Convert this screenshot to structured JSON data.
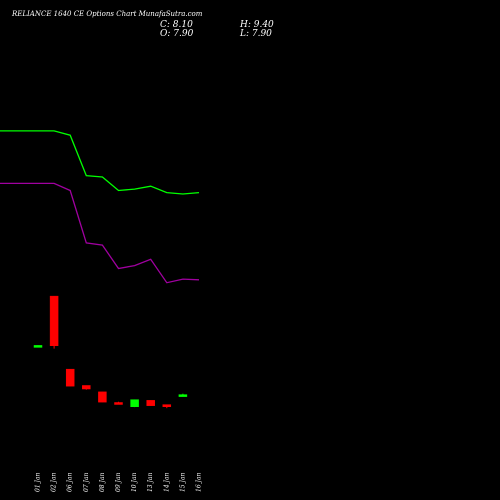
{
  "header": {
    "title": "RELIANCE 1640 CE Options Chart MunafaSutra.com",
    "close": "C: 8.10",
    "open": "O: 7.90",
    "high": "H: 9.40",
    "low": "L: 7.90"
  },
  "colors": {
    "background": "#000000",
    "bull": "#00ff00",
    "bear": "#ff0000",
    "upper_band": "#00ff00",
    "lower_band": "#a000a0"
  },
  "chart_data": {
    "type": "candlestick",
    "x_ticks": [
      "01 Jan",
      "02 Jan",
      "06 Jan",
      "07 Jan",
      "08 Jan",
      "09 Jan",
      "10 Jan",
      "13 Jan",
      "14 Jan",
      "15 Jan",
      "16 Jan"
    ],
    "candles": [
      {
        "date": "01 Jan",
        "open": 76.5,
        "high": 77.5,
        "low": 76.5,
        "close": 77.5
      },
      {
        "date": "02 Jan",
        "open": 147.0,
        "high": 147.0,
        "low": 73.0,
        "close": 77.0
      },
      {
        "date": "06 Jan",
        "open": 44.0,
        "high": 44.0,
        "low": 20.0,
        "close": 20.0
      },
      {
        "date": "07 Jan",
        "open": 21.0,
        "high": 21.0,
        "low": 15.0,
        "close": 16.0
      },
      {
        "date": "08 Jan",
        "open": 12.0,
        "high": 12.0,
        "low": -2.5,
        "close": -2.5
      },
      {
        "date": "09 Jan",
        "open": -3.0,
        "high": -2.0,
        "low": -4.5,
        "close": -3.5
      },
      {
        "date": "10 Jan",
        "open": -9.0,
        "high": 1.0,
        "low": -9.5,
        "close": 1.0
      },
      {
        "date": "13 Jan",
        "open": 0.0,
        "high": 0.0,
        "low": -7.5,
        "close": -7.5
      },
      {
        "date": "14 Jan",
        "open": -6.0,
        "high": -6.0,
        "low": -11.0,
        "close": -9.0
      },
      {
        "date": "15 Jan",
        "open": 7.9,
        "high": 9.4,
        "low": 7.9,
        "close": 8.1
      }
    ],
    "upper_band": [
      {
        "date": "01 Jan",
        "value": 380
      },
      {
        "date": "02 Jan",
        "value": 380
      },
      {
        "date": "06 Jan",
        "value": 374
      },
      {
        "date": "07 Jan",
        "value": 317
      },
      {
        "date": "08 Jan",
        "value": 315
      },
      {
        "date": "09 Jan",
        "value": 296
      },
      {
        "date": "10 Jan",
        "value": 298
      },
      {
        "date": "13 Jan",
        "value": 302
      },
      {
        "date": "14 Jan",
        "value": 293
      },
      {
        "date": "15 Jan",
        "value": 291
      },
      {
        "date": "16 Jan",
        "value": 293
      }
    ],
    "lower_band": [
      {
        "date": "01 Jan",
        "value": 306
      },
      {
        "date": "02 Jan",
        "value": 306
      },
      {
        "date": "06 Jan",
        "value": 296
      },
      {
        "date": "07 Jan",
        "value": 222
      },
      {
        "date": "08 Jan",
        "value": 219
      },
      {
        "date": "09 Jan",
        "value": 186
      },
      {
        "date": "10 Jan",
        "value": 190
      },
      {
        "date": "13 Jan",
        "value": 199
      },
      {
        "date": "14 Jan",
        "value": 166
      },
      {
        "date": "15 Jan",
        "value": 171
      },
      {
        "date": "16 Jan",
        "value": 170
      }
    ],
    "y_range": [
      -70,
      480
    ],
    "grid": false
  }
}
